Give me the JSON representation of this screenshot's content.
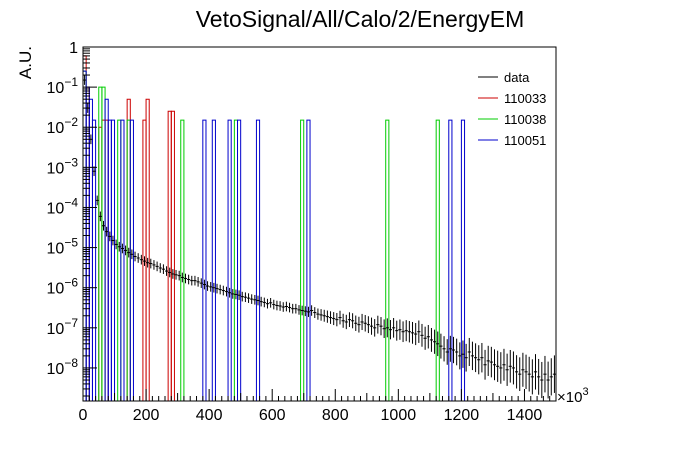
{
  "chart_data": {
    "type": "histogram",
    "title": "VetoSignal/All/Calo/2/EnergyEM",
    "xlabel": "",
    "ylabel": "A.U.",
    "x_scale_label": "×10",
    "x_scale_exp": "3",
    "xlim": [
      0,
      1500
    ],
    "ylim": [
      1.5e-09,
      1.0
    ],
    "y_scale": "log",
    "grid": false,
    "legend_position": "top-right",
    "x_ticks": [
      {
        "value": 0,
        "label": "0"
      },
      {
        "value": 200,
        "label": "200"
      },
      {
        "value": 400,
        "label": "400"
      },
      {
        "value": 600,
        "label": "600"
      },
      {
        "value": 800,
        "label": "800"
      },
      {
        "value": 1000,
        "label": "1000"
      },
      {
        "value": 1200,
        "label": "1200"
      },
      {
        "value": 1400,
        "label": "1400"
      }
    ],
    "y_ticks": [
      {
        "value": 1,
        "label": "1",
        "exp": ""
      },
      {
        "value": 0.1,
        "label": "10",
        "exp": "−1"
      },
      {
        "value": 0.01,
        "label": "10",
        "exp": "−2"
      },
      {
        "value": 0.001,
        "label": "10",
        "exp": "−3"
      },
      {
        "value": 0.0001,
        "label": "10",
        "exp": "−4"
      },
      {
        "value": 1e-05,
        "label": "10",
        "exp": "−5"
      },
      {
        "value": 1e-06,
        "label": "10",
        "exp": "−6"
      },
      {
        "value": 1e-07,
        "label": "10",
        "exp": "−7"
      },
      {
        "value": 1e-08,
        "label": "10",
        "exp": "−8"
      }
    ],
    "bin_width": 10,
    "series": [
      {
        "name": "data",
        "color": "#000000",
        "style": "points",
        "points": [
          [
            5,
            0.15
          ],
          [
            15,
            0.03
          ],
          [
            25,
            0.005
          ],
          [
            35,
            0.0008
          ],
          [
            45,
            0.00015
          ],
          [
            55,
            6e-05
          ],
          [
            65,
            3.5e-05
          ],
          [
            75,
            2.5e-05
          ],
          [
            85,
            1.9e-05
          ],
          [
            95,
            1.5e-05
          ],
          [
            105,
            1.2e-05
          ],
          [
            115,
            1.05e-05
          ],
          [
            125,
            9.5e-06
          ],
          [
            135,
            8.5e-06
          ],
          [
            145,
            7.5e-06
          ],
          [
            155,
            6.8e-06
          ],
          [
            165,
            6e-06
          ],
          [
            175,
            5.5e-06
          ],
          [
            185,
            5e-06
          ],
          [
            195,
            4.6e-06
          ],
          [
            205,
            4.2e-06
          ],
          [
            215,
            4e-06
          ],
          [
            225,
            3.7e-06
          ],
          [
            235,
            3.4e-06
          ],
          [
            245,
            3.1e-06
          ],
          [
            255,
            2.9e-06
          ],
          [
            265,
            2.6e-06
          ],
          [
            275,
            2.4e-06
          ],
          [
            285,
            2.2e-06
          ],
          [
            295,
            2.1e-06
          ],
          [
            305,
            2e-06
          ],
          [
            315,
            1.8e-06
          ],
          [
            325,
            1.7e-06
          ],
          [
            335,
            1.6e-06
          ],
          [
            345,
            1.5e-06
          ],
          [
            355,
            1.5e-06
          ],
          [
            365,
            1.4e-06
          ],
          [
            375,
            1.3e-06
          ],
          [
            385,
            1.2e-06
          ],
          [
            395,
            1.1e-06
          ],
          [
            405,
            1.05e-06
          ],
          [
            415,
            1e-06
          ],
          [
            425,
            9.5e-07
          ],
          [
            435,
            9e-07
          ],
          [
            445,
            8.5e-07
          ],
          [
            455,
            8e-07
          ],
          [
            465,
            7.5e-07
          ],
          [
            475,
            7e-07
          ],
          [
            485,
            6.8e-07
          ],
          [
            495,
            6.5e-07
          ],
          [
            505,
            6e-07
          ],
          [
            515,
            5.8e-07
          ],
          [
            525,
            5.5e-07
          ],
          [
            535,
            5.2e-07
          ],
          [
            545,
            5e-07
          ],
          [
            555,
            4.8e-07
          ],
          [
            565,
            4.5e-07
          ],
          [
            575,
            4.3e-07
          ],
          [
            585,
            4e-07
          ],
          [
            595,
            4.2e-07
          ],
          [
            605,
            3.8e-07
          ],
          [
            615,
            3.6e-07
          ],
          [
            625,
            3.5e-07
          ],
          [
            635,
            3.3e-07
          ],
          [
            645,
            3.4e-07
          ],
          [
            655,
            3.2e-07
          ],
          [
            665,
            3e-07
          ],
          [
            675,
            3e-07
          ],
          [
            685,
            2.8e-07
          ],
          [
            695,
            2.7e-07
          ],
          [
            705,
            2.6e-07
          ],
          [
            715,
            2.5e-07
          ],
          [
            725,
            2.7e-07
          ],
          [
            735,
            2.4e-07
          ],
          [
            745,
            2.2e-07
          ],
          [
            755,
            2.1e-07
          ],
          [
            765,
            2e-07
          ],
          [
            775,
            1.9e-07
          ],
          [
            785,
            1.8e-07
          ],
          [
            795,
            1.7e-07
          ],
          [
            805,
            1.6e-07
          ],
          [
            815,
            1.8e-07
          ],
          [
            825,
            1.5e-07
          ],
          [
            835,
            1.4e-07
          ],
          [
            845,
            1.6e-07
          ],
          [
            855,
            1.5e-07
          ],
          [
            865,
            1.3e-07
          ],
          [
            875,
            1.2e-07
          ],
          [
            885,
            1.4e-07
          ],
          [
            895,
            1.3e-07
          ],
          [
            905,
            1.2e-07
          ],
          [
            915,
            1.1e-07
          ],
          [
            925,
            1e-07
          ],
          [
            935,
            1.2e-07
          ],
          [
            945,
            1.1e-07
          ],
          [
            955,
            9.5e-08
          ],
          [
            965,
            1e-07
          ],
          [
            975,
            9e-08
          ],
          [
            985,
            1e-07
          ],
          [
            995,
            8.5e-08
          ],
          [
            1005,
            9e-08
          ],
          [
            1015,
            8e-08
          ],
          [
            1025,
            8.5e-08
          ],
          [
            1035,
            8e-08
          ],
          [
            1045,
            7.5e-08
          ],
          [
            1055,
            7e-08
          ],
          [
            1065,
            8e-08
          ],
          [
            1075,
            6.5e-08
          ],
          [
            1085,
            5.5e-08
          ],
          [
            1095,
            6e-08
          ],
          [
            1105,
            5e-08
          ],
          [
            1115,
            4.5e-08
          ],
          [
            1125,
            4e-08
          ],
          [
            1135,
            3.5e-08
          ],
          [
            1145,
            3e-08
          ],
          [
            1155,
            2.5e-08
          ],
          [
            1165,
            3e-08
          ],
          [
            1175,
            2.8e-08
          ],
          [
            1185,
            2.5e-08
          ],
          [
            1195,
            2e-08
          ],
          [
            1205,
            2.2e-08
          ],
          [
            1215,
            1.8e-08
          ],
          [
            1225,
            2.5e-08
          ],
          [
            1235,
            2e-08
          ],
          [
            1245,
            1.8e-08
          ],
          [
            1255,
            1.6e-08
          ],
          [
            1265,
            1.8e-08
          ],
          [
            1275,
            1.2e-08
          ],
          [
            1285,
            1.5e-08
          ],
          [
            1295,
            1.4e-08
          ],
          [
            1305,
            1.2e-08
          ],
          [
            1315,
            1.1e-08
          ],
          [
            1325,
            1e-08
          ],
          [
            1335,
            1.2e-08
          ],
          [
            1345,
            9e-09
          ],
          [
            1355,
            1.1e-08
          ],
          [
            1365,
            1e-08
          ],
          [
            1375,
            8e-09
          ],
          [
            1385,
            7e-09
          ],
          [
            1395,
            9e-09
          ],
          [
            1405,
            8e-09
          ],
          [
            1415,
            7e-09
          ],
          [
            1425,
            6e-09
          ],
          [
            1435,
            8e-09
          ],
          [
            1445,
            6e-09
          ],
          [
            1455,
            5e-09
          ],
          [
            1465,
            7e-09
          ],
          [
            1475,
            5e-09
          ],
          [
            1485,
            6e-09
          ],
          [
            1495,
            7e-09
          ]
        ]
      },
      {
        "name": "110033",
        "color": "#cc0000",
        "style": "histogram",
        "bins": [
          [
            0,
            10,
            0.6
          ],
          [
            10,
            20,
            0.1
          ],
          [
            50,
            60,
            0.01
          ],
          [
            60,
            70,
            0.015
          ],
          [
            70,
            80,
            0.015
          ],
          [
            140,
            150,
            0.05
          ],
          [
            190,
            200,
            0.015
          ],
          [
            200,
            210,
            0.05
          ],
          [
            270,
            280,
            0.025
          ],
          [
            280,
            290,
            0.025
          ]
        ]
      },
      {
        "name": "110038",
        "color": "#00cc00",
        "style": "histogram",
        "bins": [
          [
            0,
            10,
            0.25
          ],
          [
            50,
            60,
            0.1
          ],
          [
            60,
            70,
            0.1
          ],
          [
            110,
            120,
            0.015
          ],
          [
            140,
            150,
            0.015
          ],
          [
            310,
            320,
            0.015
          ],
          [
            480,
            490,
            0.015
          ],
          [
            690,
            700,
            0.015
          ],
          [
            960,
            970,
            0.015
          ],
          [
            1120,
            1130,
            0.015
          ]
        ]
      },
      {
        "name": "110051",
        "color": "#0000cc",
        "style": "histogram",
        "bins": [
          [
            0,
            10,
            0.25
          ],
          [
            10,
            20,
            0.1
          ],
          [
            20,
            30,
            0.05
          ],
          [
            30,
            40,
            0.015
          ],
          [
            70,
            80,
            0.05
          ],
          [
            80,
            90,
            0.015
          ],
          [
            90,
            100,
            0.015
          ],
          [
            120,
            130,
            0.015
          ],
          [
            150,
            160,
            0.015
          ],
          [
            380,
            390,
            0.015
          ],
          [
            410,
            420,
            0.015
          ],
          [
            460,
            470,
            0.015
          ],
          [
            490,
            500,
            0.015
          ],
          [
            550,
            560,
            0.015
          ],
          [
            710,
            720,
            0.015
          ],
          [
            1160,
            1170,
            0.015
          ],
          [
            1200,
            1210,
            0.015
          ]
        ]
      }
    ]
  }
}
